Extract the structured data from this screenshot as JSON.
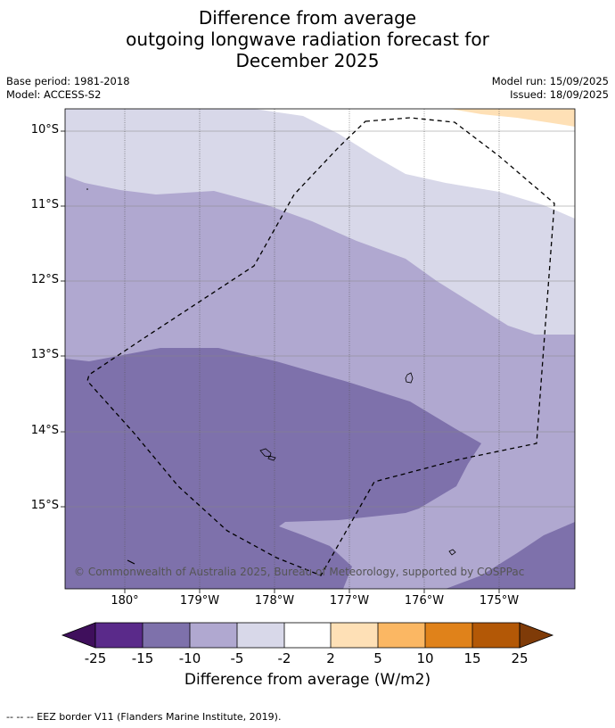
{
  "title": {
    "line1": "Difference from average",
    "line2": "outgoing longwave radiation forecast for",
    "line3": "December 2025"
  },
  "meta": {
    "base_period": "Base period: 1981-2018",
    "model": "Model: ACCESS-S2",
    "model_run": "Model run: 15/09/2025",
    "issued": "Issued: 18/09/2025"
  },
  "axes": {
    "lat_labels": [
      "10°S",
      "11°S",
      "12°S",
      "13°S",
      "14°S",
      "15°S"
    ],
    "lon_labels": [
      "180°",
      "179°W",
      "178°W",
      "177°W",
      "176°W",
      "175°W"
    ]
  },
  "copyright": "© Commonwealth of Australia 2025, Bureau of Meteorology, supported by COSPPac",
  "colorbar": {
    "ticks": [
      "-25",
      "-15",
      "-10",
      "-5",
      "-2",
      "2",
      "5",
      "10",
      "15",
      "25"
    ],
    "colors": [
      "#3f0f5c",
      "#5a2a8a",
      "#7e71ab",
      "#b0a8d0",
      "#d8d8e9",
      "#ffffff",
      "#fee0b6",
      "#fbb763",
      "#e0821a",
      "#b35806",
      "#7f3b08"
    ],
    "label": "Difference from average (W/m2)"
  },
  "footer": "--  --  -- EEZ border V11 (Flanders Marine Institute, 2019)."
}
